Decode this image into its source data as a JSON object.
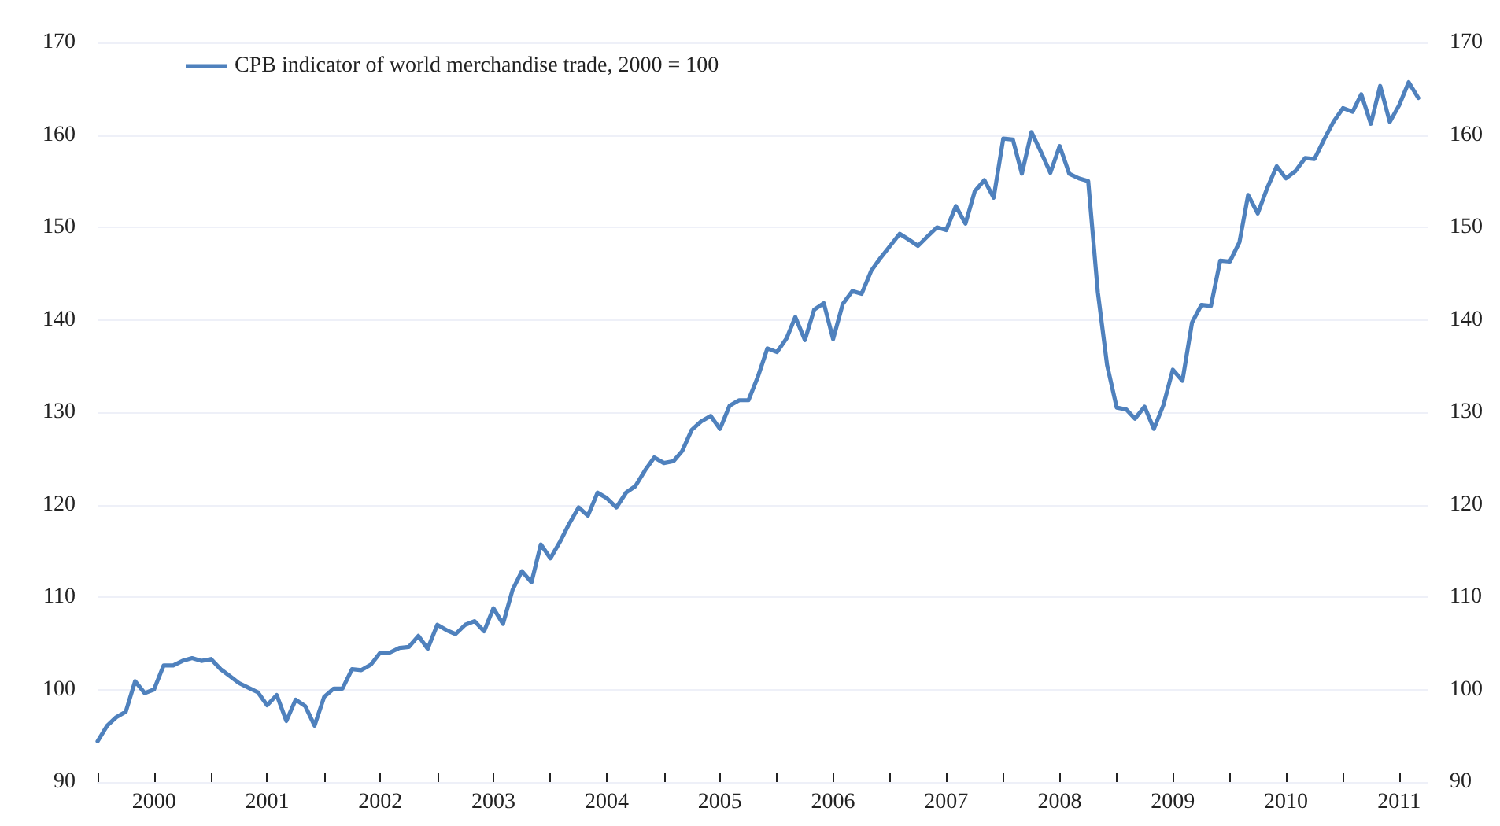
{
  "chart_data": {
    "type": "line",
    "x": [
      "2000-01",
      "2000-02",
      "2000-03",
      "2000-04",
      "2000-05",
      "2000-06",
      "2000-07",
      "2000-08",
      "2000-09",
      "2000-10",
      "2000-11",
      "2000-12",
      "2001-01",
      "2001-02",
      "2001-03",
      "2001-04",
      "2001-05",
      "2001-06",
      "2001-07",
      "2001-08",
      "2001-09",
      "2001-10",
      "2001-11",
      "2001-12",
      "2002-01",
      "2002-02",
      "2002-03",
      "2002-04",
      "2002-05",
      "2002-06",
      "2002-07",
      "2002-08",
      "2002-09",
      "2002-10",
      "2002-11",
      "2002-12",
      "2003-01",
      "2003-02",
      "2003-03",
      "2003-04",
      "2003-05",
      "2003-06",
      "2003-07",
      "2003-08",
      "2003-09",
      "2003-10",
      "2003-11",
      "2003-12",
      "2004-01",
      "2004-02",
      "2004-03",
      "2004-04",
      "2004-05",
      "2004-06",
      "2004-07",
      "2004-08",
      "2004-09",
      "2004-10",
      "2004-11",
      "2004-12",
      "2005-01",
      "2005-02",
      "2005-03",
      "2005-04",
      "2005-05",
      "2005-06",
      "2005-07",
      "2005-08",
      "2005-09",
      "2005-10",
      "2005-11",
      "2005-12",
      "2006-01",
      "2006-02",
      "2006-03",
      "2006-04",
      "2006-05",
      "2006-06",
      "2006-07",
      "2006-08",
      "2006-09",
      "2006-10",
      "2006-11",
      "2006-12",
      "2007-01",
      "2007-02",
      "2007-03",
      "2007-04",
      "2007-05",
      "2007-06",
      "2007-07",
      "2007-08",
      "2007-09",
      "2007-10",
      "2007-11",
      "2007-12",
      "2008-01",
      "2008-02",
      "2008-03",
      "2008-04",
      "2008-05",
      "2008-06",
      "2008-07",
      "2008-08",
      "2008-09",
      "2008-10",
      "2008-11",
      "2008-12",
      "2009-01",
      "2009-02",
      "2009-03",
      "2009-04",
      "2009-05",
      "2009-06",
      "2009-07",
      "2009-08",
      "2009-09",
      "2009-10",
      "2009-11",
      "2009-12",
      "2010-01",
      "2010-02",
      "2010-03",
      "2010-04",
      "2010-05",
      "2010-06",
      "2010-07",
      "2010-08",
      "2010-09",
      "2010-10",
      "2010-11",
      "2010-12",
      "2011-01",
      "2011-02",
      "2011-03",
      "2011-04",
      "2011-05",
      "2011-06",
      "2011-07",
      "2011-08",
      "2011-09"
    ],
    "series": [
      {
        "name": "CPB indicator of world merchandise trade, 2000 = 100",
        "color": "#4f81bd",
        "values": [
          94.4,
          96.1,
          97.0,
          97.6,
          100.9,
          99.6,
          100.0,
          102.6,
          102.6,
          103.1,
          103.4,
          103.1,
          103.3,
          102.2,
          101.5,
          100.7,
          100.2,
          99.7,
          98.3,
          99.4,
          96.6,
          98.9,
          98.2,
          96.1,
          99.2,
          100.1,
          100.1,
          102.2,
          102.1,
          102.7,
          104.0,
          104.0,
          104.5,
          104.6,
          105.8,
          104.4,
          107.0,
          106.4,
          106.0,
          107.0,
          107.4,
          106.3,
          108.8,
          107.1,
          110.8,
          112.8,
          111.6,
          115.7,
          114.2,
          116.0,
          117.9,
          119.7,
          118.8,
          121.3,
          120.7,
          119.7,
          121.3,
          122.0,
          123.7,
          125.1,
          124.5,
          124.7,
          125.8,
          128.1,
          129.0,
          129.6,
          128.2,
          130.7,
          131.3,
          131.3,
          133.9,
          136.9,
          136.5,
          138.0,
          140.3,
          137.8,
          141.1,
          141.8,
          137.9,
          141.7,
          143.1,
          142.8,
          145.3,
          146.7,
          148.0,
          149.3,
          148.7,
          148.0,
          149.0,
          150.0,
          149.7,
          152.3,
          150.4,
          153.9,
          155.1,
          153.2,
          159.6,
          159.5,
          155.8,
          160.3,
          158.2,
          155.9,
          158.8,
          155.8,
          155.3,
          155.0,
          143.0,
          135.1,
          130.5,
          130.3,
          129.3,
          130.6,
          128.2,
          130.8,
          134.6,
          133.4,
          139.7,
          141.6,
          141.5,
          146.4,
          146.3,
          148.4,
          153.5,
          151.5,
          154.2,
          156.6,
          155.3,
          156.1,
          157.5,
          157.4,
          159.5,
          161.4,
          162.9,
          162.5,
          164.4,
          161.2,
          165.3,
          161.4,
          163.2,
          165.7,
          164.0
        ]
      }
    ],
    "xlim": [
      "2000-01",
      "2011-10"
    ],
    "xticks": [
      {
        "value": "2000-01",
        "label": null
      },
      {
        "value": "2000-07",
        "label": "2000"
      },
      {
        "value": "2001-01",
        "label": null
      },
      {
        "value": "2001-07",
        "label": "2001"
      },
      {
        "value": "2002-01",
        "label": null
      },
      {
        "value": "2002-07",
        "label": "2002"
      },
      {
        "value": "2003-01",
        "label": null
      },
      {
        "value": "2003-07",
        "label": "2003"
      },
      {
        "value": "2004-01",
        "label": null
      },
      {
        "value": "2004-07",
        "label": "2004"
      },
      {
        "value": "2005-01",
        "label": null
      },
      {
        "value": "2005-07",
        "label": "2005"
      },
      {
        "value": "2006-01",
        "label": null
      },
      {
        "value": "2006-07",
        "label": "2006"
      },
      {
        "value": "2007-01",
        "label": null
      },
      {
        "value": "2007-07",
        "label": "2007"
      },
      {
        "value": "2008-01",
        "label": null
      },
      {
        "value": "2008-07",
        "label": "2008"
      },
      {
        "value": "2009-01",
        "label": null
      },
      {
        "value": "2009-07",
        "label": "2009"
      },
      {
        "value": "2010-01",
        "label": null
      },
      {
        "value": "2010-07",
        "label": "2010"
      },
      {
        "value": "2011-01",
        "label": null
      },
      {
        "value": "2011-07",
        "label": "2011"
      }
    ],
    "ylim": [
      90,
      170
    ],
    "yticks": [
      90,
      100,
      110,
      120,
      130,
      140,
      150,
      160,
      170
    ],
    "y2lim": [
      90,
      170
    ],
    "y2ticks": [
      90,
      100,
      110,
      120,
      130,
      140,
      150,
      160,
      170
    ],
    "grid": "y",
    "legend": "top left",
    "marker": "none",
    "line_style": "solid"
  }
}
